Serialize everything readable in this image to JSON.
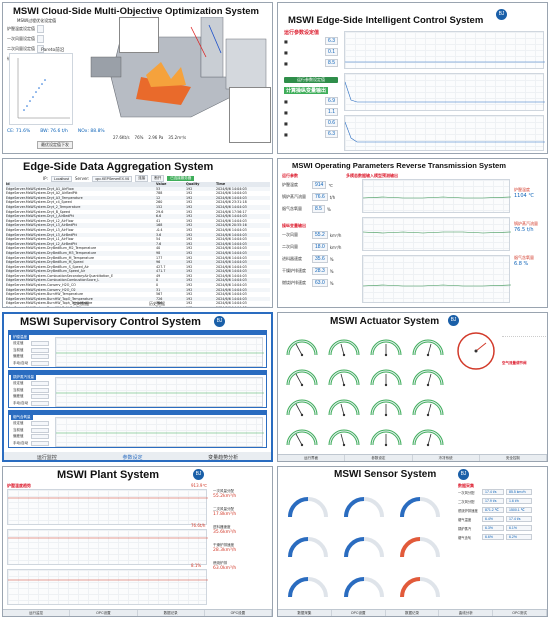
{
  "panels": {
    "cloud": {
      "title": "MSWI Cloud-Side Multi-Objective Optimization System",
      "subtitle": "MSWI过程优化设定值",
      "params": [
        "炉膛温度设定值",
        "一次风量设定值",
        "二次风量设定值",
        "给料器速度设定值"
      ],
      "pareto_label": "Pareto前沿",
      "bottom": [
        "CE: 71.6%",
        "BW: 76.6 t/h",
        "NOx: 88.8%"
      ],
      "footer": "最优设定值下发",
      "stats": [
        "27.6Kt/s",
        "76%",
        "2.96 Pa",
        "35.2m³/s"
      ]
    },
    "edge_control": {
      "title": "MSWI Edge-Side Intelligent Control System",
      "sec1": "运行参数设定值",
      "sec2": "计算操纵变量输出",
      "btn": "运行参数设定值",
      "vals": [
        "6.3",
        "0.1",
        "8.5",
        "6.9",
        "1.1",
        "0.6",
        "6.3"
      ]
    },
    "aggregation": {
      "title": "Edge-Side Data Aggregation System",
      "ip_label": "IP:",
      "ip_value": "Localhost",
      "server_label": "Server:",
      "server_value": "opc.KEPServerEX.V6",
      "connect": "连接",
      "disconnect": "断开",
      "status": "已连接服务器",
      "columns": [
        "Id",
        "Value",
        "Quality",
        "Time"
      ],
      "rows": [
        [
          "EdgeServer.MsWSystem.Dryt_A1_AirFlow",
          "53",
          "192",
          "2024/6/6 14:04:03"
        ],
        [
          "EdgeServer.MsWSystem.Dryt_A2_AirBedPtt",
          "788",
          "192",
          "2024/6/6 14:04:03"
        ],
        [
          "EdgeServer.MsWSystem.Dryt_A3_Temperature",
          "12",
          "192",
          "2024/6/6 14:04:03"
        ],
        [
          "EdgeServer.MsWSystem.Dryt_c4_Speed",
          "260",
          "192",
          "2024/6/6 23:31:18"
        ],
        [
          "EdgeServer.MsWSystem.Dryt_2_Temperature",
          "152",
          "192",
          "2024/6/6 14:04:03"
        ],
        [
          "EdgeServer.MsWSystem.Dryt_B_Speed",
          "29.6",
          "192",
          "2024/6/6 17:56:17"
        ],
        [
          "EdgeServer.MsWSystem.Dryt_J_AirBedPtt",
          "6.6",
          "192",
          "2024/6/6 14:04:03"
        ],
        [
          "EdgeServer.MsWSystem.Dryt_L2_AirFlow",
          "41",
          "192",
          "2024/6/6 14:04:03"
        ],
        [
          "EdgeServer.MsWSystem.Dryt_L3_AirBedPtt",
          "168",
          "192",
          "2024/6/6 20:55:16"
        ],
        [
          "EdgeServer.MsWSystem.Dryt_L3_AirFlow",
          "-0.4",
          "192",
          "2024/6/6 14:04:03"
        ],
        [
          "EdgeServer.MsWSystem.Dryt_L3_AirBedPtt",
          "3.6",
          "192",
          "2024/6/6 14:04:03"
        ],
        [
          "EdgeServer.MsWSystem.Dryt_L1_AirFlow",
          "54",
          "192",
          "2024/6/6 14:04:03"
        ],
        [
          "EdgeServer.MsWSystem.Dryt_L2_AirBedPtt",
          "7.6",
          "192",
          "2024/6/6 14:04:03"
        ],
        [
          "EdgeServer.MsWSystem.DryBedBurn_M2_Temperature",
          "40",
          "192",
          "2024/6/6 14:04:03"
        ],
        [
          "EdgeServer.MsWSystem.DryBedBurn_M3_Temperature",
          "98",
          "192",
          "2024/6/6 14:04:03"
        ],
        [
          "EdgeServer.MsWSystem.DryBedBurn_M_Temperature",
          "177",
          "192",
          "2024/6/6 14:04:03"
        ],
        [
          "EdgeServer.MsWSystem.DryBedBurn_M_Speed",
          "96",
          "192",
          "2024/6/6 14:04:03"
        ],
        [
          "EdgeServer.MsWSystem.DryBedBurn_S_Speed_Air",
          "427.7",
          "192",
          "2024/6/6 14:04:03"
        ],
        [
          "EdgeServer.MsWSystem.DryBedBurn_Speed_Air",
          "471.7",
          "192",
          "2024/6/6 14:04:03"
        ],
        [
          "EdgeServer.MsWSystem.CombustionSecondaryAirQuantitation_E",
          "49",
          "192",
          "2024/6/6 14:04:03"
        ],
        [
          "EdgeServer.MsWSystem.CombustionCombustionScore_L",
          "0",
          "192",
          "2024/6/6 14:04:03"
        ],
        [
          "EdgeServer.MsWSystem.Conserv_H2O_CO",
          "0",
          "192",
          "2024/6/6 14:04:03"
        ],
        [
          "EdgeServer.MsWSystem.Conserv_H2O_O2",
          "31",
          "192",
          "2024/6/6 14:04:03"
        ],
        [
          "EdgeServer.MsWSystem.BurnHW_Temperature",
          "567",
          "192",
          "2024/6/6 14:04:03"
        ],
        [
          "EdgeServer.MsWSystem.BurnHW_TopO_Temperature",
          "726",
          "192",
          "2024/6/6 14:04:03"
        ],
        [
          "EdgeServer.MsWSystem.BurnHW_Toph_Temperature",
          "706",
          "192",
          "2024/6/6 14:04:03"
        ],
        [
          "EdgeServer.MsWSystem.BurnHW_P_AirBedPtt",
          "2.2",
          "192",
          "2024/6/6 14:04:03"
        ]
      ],
      "footer_btns": [
        "实时数据",
        "历史数据"
      ]
    },
    "reverse": {
      "title": "MSWI Operating Parameters Reverse Transmission System",
      "sec_left": "运行参数",
      "sec_mid": "多模态数据输入模型预测输出",
      "items": [
        {
          "label": "炉膛温度",
          "value": "914",
          "unit": "℃"
        },
        {
          "label": "锅炉蒸汽流量",
          "value": "76.6",
          "unit": "t/h"
        },
        {
          "label": "烟气含氧量",
          "value": "8.5",
          "unit": "%"
        }
      ],
      "manip_sec": "操纵变量输出",
      "manip": [
        {
          "label": "一次风量",
          "value": "55.2",
          "unit": "km³/h"
        },
        {
          "label": "二次风量",
          "value": "18.0",
          "unit": "km³/h"
        },
        {
          "label": "进料器速度",
          "value": "35.6",
          "unit": "%"
        },
        {
          "label": "干燥炉排速度",
          "value": "28.3",
          "unit": "%"
        },
        {
          "label": "燃烧炉排速度",
          "value": "63.0",
          "unit": "%"
        }
      ],
      "right": [
        {
          "label": "炉膛温度",
          "value": "1104 ℃"
        },
        {
          "label": "锅炉蒸汽流量",
          "value": "76.5 t/h"
        },
        {
          "label": "烟气含氧量",
          "value": "6.8 %"
        }
      ]
    },
    "supervisory": {
      "title": "MSWI Supervisory Control System",
      "sections": [
        "炉膛温度",
        "锅炉蒸汽流量",
        "烟气含氧量"
      ],
      "labels": [
        "设定值",
        "当前值",
        "偏差值",
        "手动/自动"
      ],
      "tabs": [
        "运行监控",
        "参数设定",
        "变量趋势分析"
      ]
    },
    "actuator": {
      "title": "MSWI Actuator System",
      "right_sec": "空气流量调节阀",
      "tabs": [
        "运行界面",
        "参数设定",
        "冷冴系统",
        "安全控制"
      ]
    },
    "plant": {
      "title": "MSWI Plant System",
      "sec": "炉膛温度趋势",
      "values": [
        "913.9℃",
        "76.6t/h",
        "8.1%"
      ],
      "right_items": [
        {
          "label": "一次风量分配",
          "value": "55.2km³/h"
        },
        {
          "label": "二次风量分配",
          "value": "17.8km³/h"
        },
        {
          "label": "进料器速度",
          "value": "35.6km³/h"
        },
        {
          "label": "干燥炉排速度",
          "value": "28.3km³/h"
        },
        {
          "label": "燃烧炉排",
          "value": "63.0km³/h"
        }
      ],
      "tabs": [
        "运行监控",
        "OPC设置",
        "数据记录",
        "OPC设置"
      ]
    },
    "sensor": {
      "title": "MSWI Sensor System",
      "sec": "数据采集",
      "readings": [
        {
          "label": "一次风分配",
          "value": "17.4 t/s"
        },
        {
          "label": "二次风分配",
          "value": "17.9 t/s"
        },
        {
          "label": "燃烧炉排速度",
          "value": "871.2 ℃"
        },
        {
          "label": "烟气温度",
          "value": "6.4%"
        },
        {
          "label": "锅炉蒸汽",
          "value": "6.3%"
        },
        {
          "label": "烟气含氧",
          "value": "6.6%"
        }
      ],
      "readings_r": [
        "85.5 km³/h",
        "1.6 t/h",
        "1500.1 ℃",
        "17.4 t/s",
        "6.1%",
        "6.2%"
      ],
      "tabs": [
        "数据采集",
        "OPC设置",
        "数据记录",
        "曲线分析",
        "OPC测试"
      ]
    }
  },
  "colors": {
    "accent": "#2a6cc0",
    "green": "#2f8e4a",
    "red": "#d23a2a",
    "gauge_green": "#3fae5a",
    "gauge_red": "#e25a3a"
  }
}
